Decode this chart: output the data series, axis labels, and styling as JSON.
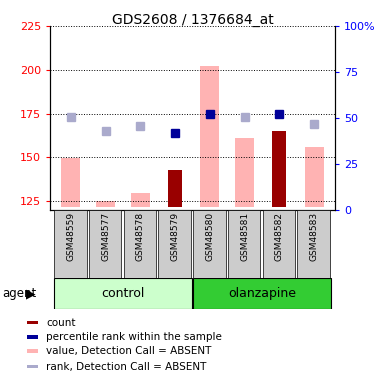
{
  "title": "GDS2608 / 1376684_at",
  "samples": [
    "GSM48559",
    "GSM48577",
    "GSM48578",
    "GSM48579",
    "GSM48580",
    "GSM48581",
    "GSM48582",
    "GSM48583"
  ],
  "ylim_left": [
    120,
    225
  ],
  "ylim_right": [
    0,
    100
  ],
  "yticks_left": [
    125,
    150,
    175,
    200,
    225
  ],
  "ytick_labels_left": [
    "125",
    "150",
    "175",
    "200",
    "225"
  ],
  "yticks_right_vals": [
    0,
    25,
    50,
    75,
    100
  ],
  "ytick_labels_right": [
    "0",
    "25",
    "50",
    "75",
    "100%"
  ],
  "bar_bottom": 122,
  "pink_bar_tops": [
    150,
    125,
    130,
    122,
    202,
    161,
    122,
    156
  ],
  "dark_red_bar_tops": [
    null,
    null,
    null,
    143,
    null,
    null,
    165,
    null
  ],
  "blue_sq_y": [
    null,
    null,
    null,
    164,
    175,
    null,
    175,
    null
  ],
  "ltblue_sq_y": [
    173,
    165,
    168,
    null,
    null,
    173,
    null,
    169
  ],
  "pink_color": "#ffb3b3",
  "darkred_color": "#990000",
  "blue_color": "#000099",
  "ltblue_color": "#aaaacc",
  "ctrl_light_green": "#ccffcc",
  "olz_green": "#33cc33",
  "sample_gray": "#cccccc",
  "legend_colors": [
    "#990000",
    "#000099",
    "#ffb3b3",
    "#aaaacc"
  ],
  "legend_labels": [
    "count",
    "percentile rank within the sample",
    "value, Detection Call = ABSENT",
    "rank, Detection Call = ABSENT"
  ],
  "figsize": [
    3.85,
    3.75
  ],
  "dpi": 100
}
